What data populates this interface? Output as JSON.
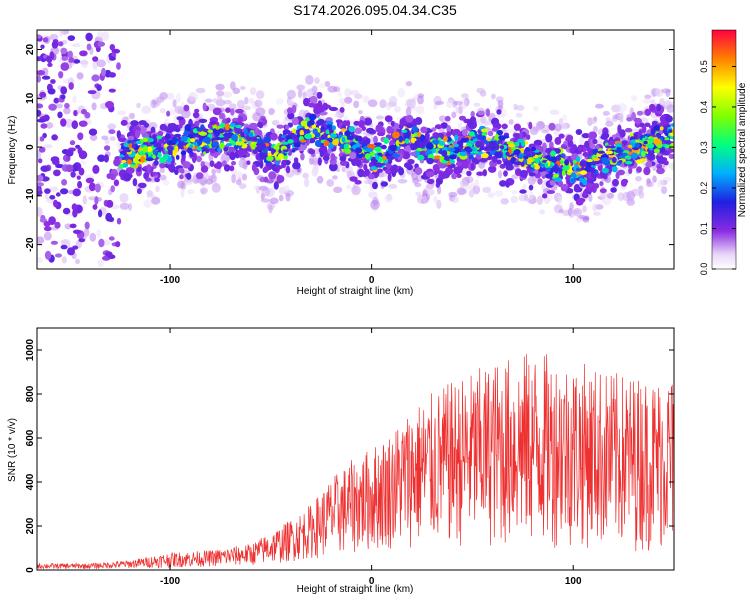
{
  "title": "S174.2026.095.04.34.C35",
  "chart_data": [
    {
      "type": "heatmap",
      "xlabel": "Height of straight line (km)",
      "ylabel": "Frequency (Hz)",
      "xlim": [
        -166,
        150
      ],
      "ylim": [
        -25,
        24
      ],
      "xticks": [
        -100,
        0,
        100
      ],
      "xtick_labels": [
        "-100",
        "0",
        "100"
      ],
      "yticks": [
        -20,
        -10,
        0,
        10,
        20
      ],
      "ytick_labels": [
        "-20",
        "-10",
        "0",
        "10",
        "20"
      ],
      "colorbar": {
        "label": "Normalized spectral amplitude",
        "range": [
          0,
          0.59
        ],
        "ticks": [
          0,
          0.1,
          0.2,
          0.3,
          0.4,
          0.5
        ],
        "tick_labels": [
          "0.0",
          "0.1",
          "0.2",
          "0.3",
          "0.4",
          "0.5"
        ]
      },
      "ridge_center_hz": [
        [
          -166,
          -1
        ],
        [
          -140,
          -2
        ],
        [
          -125,
          -2
        ],
        [
          -110,
          -1
        ],
        [
          -90,
          1
        ],
        [
          -75,
          2
        ],
        [
          -60,
          2
        ],
        [
          -50,
          -2
        ],
        [
          -40,
          1
        ],
        [
          -30,
          4
        ],
        [
          -20,
          2
        ],
        [
          -10,
          1
        ],
        [
          0,
          -2
        ],
        [
          10,
          -1
        ],
        [
          18,
          3
        ],
        [
          25,
          0
        ],
        [
          35,
          -1
        ],
        [
          45,
          0
        ],
        [
          55,
          1
        ],
        [
          65,
          0
        ],
        [
          75,
          -2
        ],
        [
          85,
          -3
        ],
        [
          95,
          -4
        ],
        [
          105,
          -5
        ],
        [
          115,
          -2
        ],
        [
          125,
          -1
        ],
        [
          135,
          0
        ],
        [
          150,
          3
        ]
      ]
    },
    {
      "type": "line",
      "xlabel": "Height of straight line (km)",
      "ylabel": "SNR (10 * v/v)",
      "xlim": [
        -166,
        150
      ],
      "ylim": [
        0,
        1100
      ],
      "xticks": [
        -100,
        0,
        100
      ],
      "xtick_labels": [
        "-100",
        "0",
        "100"
      ],
      "yticks": [
        0,
        200,
        400,
        600,
        800,
        1000
      ],
      "ytick_labels": [
        "0",
        "200",
        "400",
        "600",
        "800",
        "1000"
      ],
      "color": "#ee3030",
      "envelope": [
        {
          "x": -166,
          "low": 5,
          "high": 30
        },
        {
          "x": -140,
          "low": 5,
          "high": 30
        },
        {
          "x": -120,
          "low": 8,
          "high": 45
        },
        {
          "x": -100,
          "low": 10,
          "high": 80
        },
        {
          "x": -80,
          "low": 15,
          "high": 90
        },
        {
          "x": -60,
          "low": 20,
          "high": 120
        },
        {
          "x": -45,
          "low": 30,
          "high": 200
        },
        {
          "x": -30,
          "low": 50,
          "high": 300
        },
        {
          "x": -20,
          "low": 60,
          "high": 420
        },
        {
          "x": -10,
          "low": 70,
          "high": 500
        },
        {
          "x": 0,
          "low": 80,
          "high": 560
        },
        {
          "x": 10,
          "low": 90,
          "high": 640
        },
        {
          "x": 20,
          "low": 100,
          "high": 750
        },
        {
          "x": 40,
          "low": 100,
          "high": 860
        },
        {
          "x": 60,
          "low": 100,
          "high": 950
        },
        {
          "x": 80,
          "low": 100,
          "high": 1000
        },
        {
          "x": 100,
          "low": 100,
          "high": 960
        },
        {
          "x": 120,
          "low": 90,
          "high": 900
        },
        {
          "x": 140,
          "low": 80,
          "high": 880
        },
        {
          "x": 150,
          "low": 80,
          "high": 900
        }
      ]
    }
  ]
}
